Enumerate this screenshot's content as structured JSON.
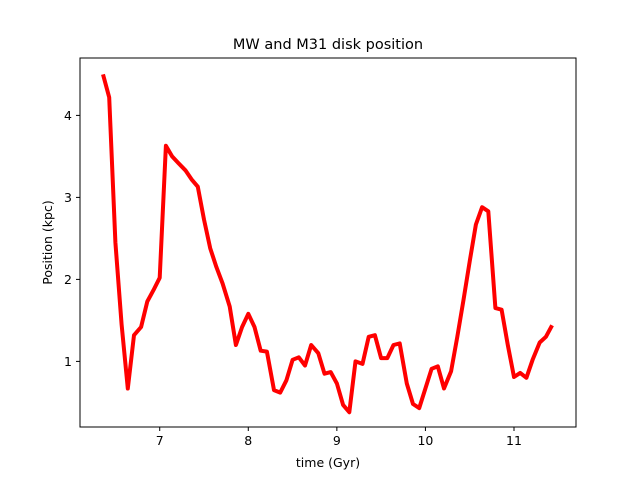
{
  "chart_data": {
    "type": "line",
    "title": "MW and M31 disk position",
    "xlabel": "time (Gyr)",
    "ylabel": "Position (kpc)",
    "xlim": [
      6.1,
      11.7
    ],
    "ylim": [
      0.2,
      4.7
    ],
    "xticks": [
      7,
      8,
      9,
      10,
      11
    ],
    "yticks": [
      1,
      2,
      3,
      4
    ],
    "grid": false,
    "legend": "none",
    "series": [
      {
        "color": "#ff0000",
        "x": [
          6.36,
          6.43,
          6.5,
          6.57,
          6.64,
          6.71,
          6.79,
          6.86,
          6.93,
          7.0,
          7.07,
          7.14,
          7.21,
          7.29,
          7.36,
          7.43,
          7.5,
          7.57,
          7.64,
          7.71,
          7.79,
          7.86,
          7.93,
          8.0,
          8.07,
          8.14,
          8.21,
          8.29,
          8.36,
          8.43,
          8.5,
          8.57,
          8.64,
          8.71,
          8.79,
          8.86,
          8.93,
          9.0,
          9.07,
          9.14,
          9.21,
          9.29,
          9.36,
          9.43,
          9.5,
          9.57,
          9.64,
          9.71,
          9.79,
          9.86,
          9.93,
          10.0,
          10.07,
          10.14,
          10.21,
          10.29,
          10.36,
          10.43,
          10.5,
          10.57,
          10.64,
          10.71,
          10.79,
          10.86,
          10.93,
          11.0,
          11.07,
          11.14,
          11.21,
          11.29,
          11.36,
          11.43
        ],
        "y": [
          4.5,
          4.22,
          2.45,
          1.45,
          0.67,
          1.32,
          1.42,
          1.73,
          1.87,
          2.02,
          3.63,
          3.5,
          3.42,
          3.33,
          3.22,
          3.13,
          2.73,
          2.38,
          2.15,
          1.95,
          1.67,
          1.2,
          1.42,
          1.58,
          1.42,
          1.13,
          1.12,
          0.65,
          0.62,
          0.77,
          1.02,
          1.05,
          0.95,
          1.2,
          1.1,
          0.85,
          0.87,
          0.73,
          0.47,
          0.38,
          1.0,
          0.97,
          1.3,
          1.32,
          1.04,
          1.04,
          1.2,
          1.22,
          0.73,
          0.48,
          0.43,
          0.67,
          0.91,
          0.94,
          0.67,
          0.88,
          1.3,
          1.75,
          2.22,
          2.67,
          2.88,
          2.83,
          1.65,
          1.63,
          1.2,
          0.81,
          0.86,
          0.8,
          1.02,
          1.23,
          1.3,
          1.44
        ]
      }
    ]
  }
}
